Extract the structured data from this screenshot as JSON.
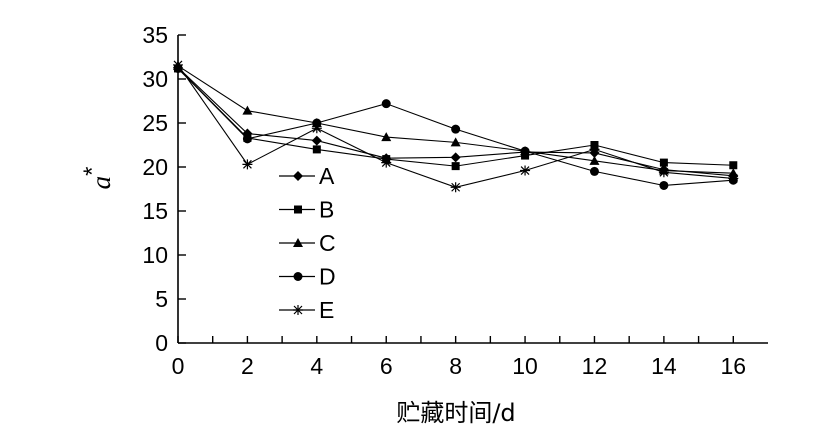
{
  "chart_data": {
    "type": "line",
    "xlabel": "贮藏时间/d",
    "ylabel": "a",
    "ylabel_superscript": "*",
    "xlim": [
      0,
      17
    ],
    "ylim": [
      0,
      35
    ],
    "xticks": [
      0,
      2,
      4,
      6,
      8,
      10,
      12,
      14,
      16
    ],
    "yticks": [
      0,
      5,
      10,
      15,
      20,
      25,
      30,
      35
    ],
    "grid": false,
    "legend_position": "inside-left",
    "series": [
      {
        "name": "A",
        "marker": "diamond",
        "x": [
          0,
          2,
          4,
          6,
          8,
          10,
          12,
          14,
          16
        ],
        "y": [
          31.3,
          23.8,
          23.0,
          21.0,
          21.1,
          21.7,
          21.6,
          19.7,
          19.0
        ]
      },
      {
        "name": "B",
        "marker": "square",
        "x": [
          0,
          2,
          4,
          6,
          8,
          10,
          12,
          14,
          16
        ],
        "y": [
          31.2,
          23.3,
          22.0,
          20.9,
          20.1,
          21.3,
          22.5,
          20.5,
          20.2
        ]
      },
      {
        "name": "C",
        "marker": "triangle",
        "x": [
          0,
          2,
          4,
          6,
          8,
          10,
          12,
          14,
          16
        ],
        "y": [
          31.5,
          26.4,
          25.0,
          23.4,
          22.8,
          21.8,
          20.7,
          19.6,
          19.3
        ]
      },
      {
        "name": "D",
        "marker": "circle",
        "x": [
          0,
          2,
          4,
          6,
          8,
          10,
          12,
          14,
          16
        ],
        "y": [
          31.2,
          23.2,
          25.0,
          27.2,
          24.3,
          21.8,
          19.5,
          17.9,
          18.5
        ]
      },
      {
        "name": "E",
        "marker": "asterisk",
        "x": [
          0,
          2,
          4,
          6,
          8,
          10,
          12,
          14,
          16
        ],
        "y": [
          31.6,
          20.3,
          24.4,
          20.5,
          17.7,
          19.6,
          22.0,
          19.4,
          18.7
        ]
      }
    ]
  }
}
